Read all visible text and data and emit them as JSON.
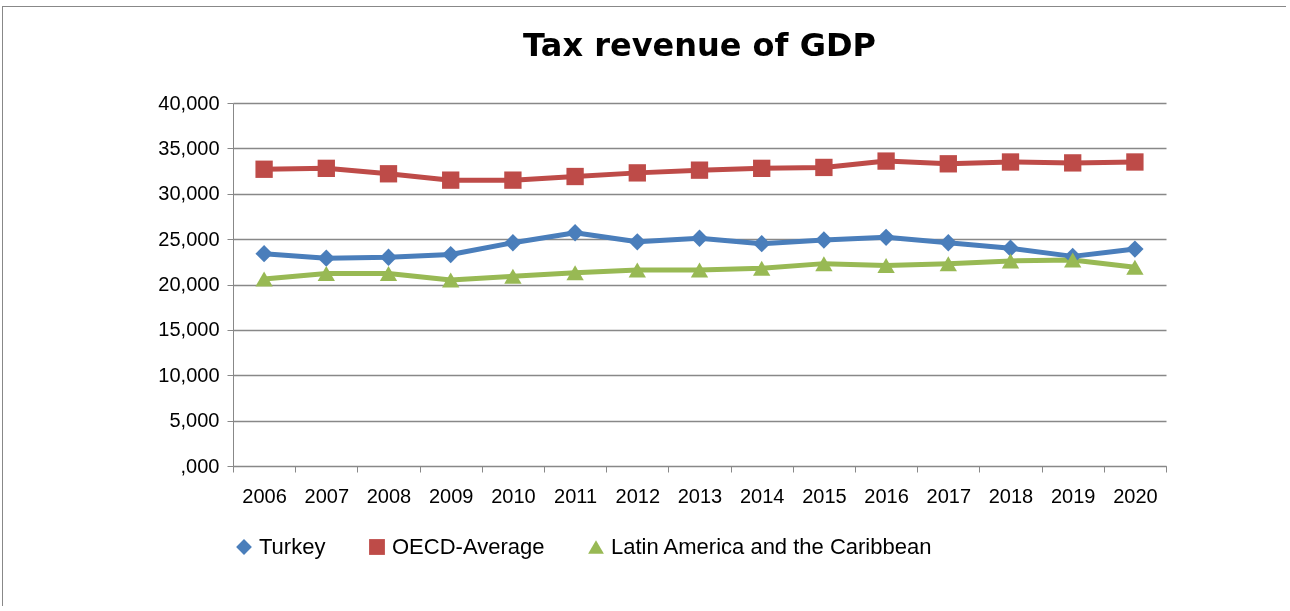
{
  "chart_data": {
    "type": "line",
    "title": "Tax revenue of GDP",
    "categories": [
      "2006",
      "2007",
      "2008",
      "2009",
      "2010",
      "2011",
      "2012",
      "2013",
      "2014",
      "2015",
      "2016",
      "2017",
      "2018",
      "2019",
      "2020"
    ],
    "series": [
      {
        "name": "Turkey",
        "color": "#4a7ebb",
        "marker": "diamond",
        "values": [
          23400,
          22900,
          23000,
          23300,
          24600,
          25700,
          24700,
          25100,
          24500,
          24900,
          25200,
          24600,
          24000,
          23100,
          23900
        ]
      },
      {
        "name": "OECD-Average",
        "color": "#be4b48",
        "marker": "square",
        "values": [
          32700,
          32800,
          32200,
          31500,
          31500,
          31900,
          32300,
          32600,
          32800,
          32900,
          33600,
          33300,
          33500,
          33400,
          33500
        ]
      },
      {
        "name": "Latin America and the Caribbean",
        "color": "#98b954",
        "marker": "triangle",
        "values": [
          20600,
          21200,
          21200,
          20500,
          20900,
          21300,
          21600,
          21600,
          21800,
          22300,
          22100,
          22300,
          22600,
          22700,
          21900
        ]
      }
    ],
    "ylim": [
      0,
      40000
    ],
    "yticks": [
      {
        "value": 0,
        "label": ",000"
      },
      {
        "value": 5000,
        "label": "5,000"
      },
      {
        "value": 10000,
        "label": "10,000"
      },
      {
        "value": 15000,
        "label": "15,000"
      },
      {
        "value": 20000,
        "label": "20,000"
      },
      {
        "value": 25000,
        "label": "25,000"
      },
      {
        "value": 30000,
        "label": "30,000"
      },
      {
        "value": 35000,
        "label": "35,000"
      },
      {
        "value": 40000,
        "label": "40,000"
      }
    ],
    "grid": "y",
    "legend": "bottom"
  }
}
